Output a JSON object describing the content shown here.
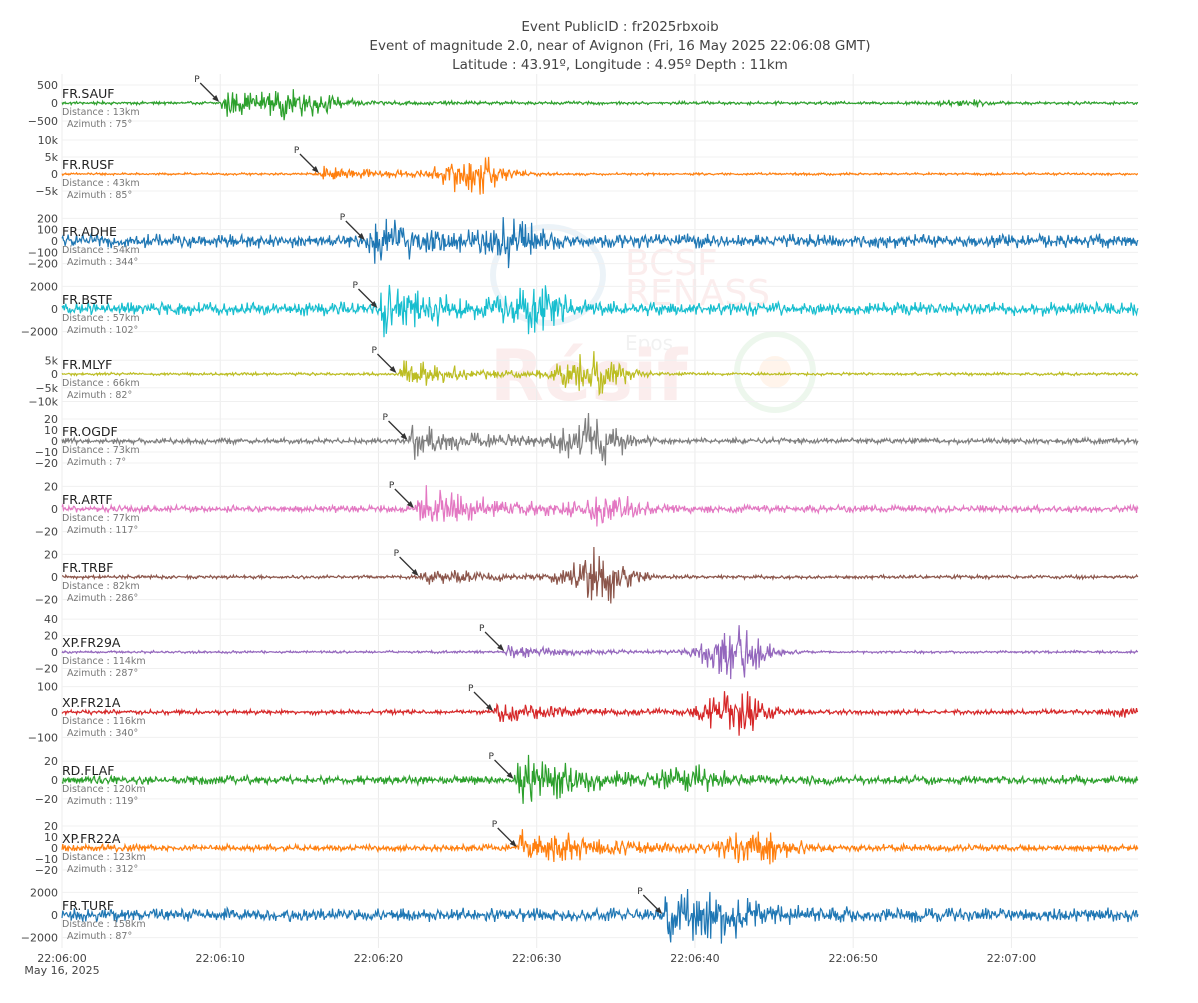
{
  "header": {
    "line1": "Event PublicID : fr2025rbxoib",
    "line2": "Event of magnitude 2.0, near of Avignon (Fri, 16 May 2025 22:06:08 GMT)",
    "line3": "Latitude : 43.91º, Longitude : 4.95º Depth : 11km"
  },
  "watermark": {
    "line1": "BCSF",
    "line2": "RENASS",
    "line3": "Epos",
    "line4": "Résif"
  },
  "chart_data": {
    "type": "line",
    "title": "Event PublicID : fr2025rbxoib",
    "x_axis": {
      "start": "22:06:00",
      "end": "22:07:08",
      "start_seconds": 0,
      "end_seconds": 68,
      "ticks": [
        {
          "value": 0,
          "label": "22:06:00"
        },
        {
          "value": 10,
          "label": "22:06:10"
        },
        {
          "value": 20,
          "label": "22:06:20"
        },
        {
          "value": 30,
          "label": "22:06:30"
        },
        {
          "value": 40,
          "label": "22:06:40"
        },
        {
          "value": 50,
          "label": "22:06:50"
        },
        {
          "value": 60,
          "label": "22:07:00"
        }
      ],
      "date_label": "May 16, 2025"
    },
    "grid": true,
    "series": [
      {
        "name": "FR.SAUF",
        "color": "#2ca02c",
        "distance": "Distance : 13km",
        "azimuth": "Azimuth : 75°",
        "p_arrival": 10,
        "secondary": 15,
        "noise": 0.05,
        "amp1": 0.45,
        "amp2": 0.35,
        "late": 57,
        "yticks": [
          {
            "v": 500,
            "t": "500"
          },
          {
            "v": 0,
            "t": "0"
          },
          {
            "v": -500,
            "t": "−500"
          }
        ],
        "ylim": [
          -1000,
          1000
        ]
      },
      {
        "name": "FR.RUSF",
        "color": "#ff7f0e",
        "distance": "Distance : 43km",
        "azimuth": "Azimuth : 85°",
        "p_arrival": 16.3,
        "secondary": 26,
        "noise": 0.04,
        "amp1": 0.3,
        "amp2": 0.65,
        "late": null,
        "yticks": [
          {
            "v": 10000,
            "t": "10k"
          },
          {
            "v": 5000,
            "t": "5k"
          },
          {
            "v": 0,
            "t": "0"
          },
          {
            "v": -5000,
            "t": "−5k"
          }
        ],
        "ylim": [
          -10000,
          10000
        ]
      },
      {
        "name": "FR.ADHE",
        "color": "#1f77b4",
        "distance": "Distance : 54km",
        "azimuth": "Azimuth : 344°",
        "p_arrival": 19.2,
        "secondary": 28.5,
        "noise": 0.22,
        "amp1": 0.75,
        "amp2": 0.6,
        "late": null,
        "yticks": [
          {
            "v": 200,
            "t": "200"
          },
          {
            "v": 100,
            "t": "100"
          },
          {
            "v": 0,
            "t": "0"
          },
          {
            "v": -100,
            "t": "−100"
          },
          {
            "v": -200,
            "t": "−200"
          }
        ],
        "ylim": [
          -300,
          300
        ]
      },
      {
        "name": "FR.BSTF",
        "color": "#17becf",
        "distance": "Distance : 57km",
        "azimuth": "Azimuth : 102°",
        "p_arrival": 20,
        "secondary": 30,
        "noise": 0.22,
        "amp1": 0.8,
        "amp2": 0.6,
        "late": null,
        "yticks": [
          {
            "v": 2000,
            "t": "2000"
          },
          {
            "v": 0,
            "t": "0"
          },
          {
            "v": -2000,
            "t": "−2000"
          }
        ],
        "ylim": [
          -3000,
          3000
        ]
      },
      {
        "name": "FR.MLYF",
        "color": "#bcbd22",
        "distance": "Distance : 66km",
        "azimuth": "Azimuth : 82°",
        "p_arrival": 21.2,
        "secondary": 33.5,
        "noise": 0.05,
        "amp1": 0.55,
        "amp2": 0.8,
        "late": null,
        "yticks": [
          {
            "v": 5000,
            "t": "5k"
          },
          {
            "v": 0,
            "t": "0"
          },
          {
            "v": -5000,
            "t": "−5k"
          },
          {
            "v": -10000,
            "t": "−10k"
          }
        ],
        "ylim": [
          -12000,
          12000
        ]
      },
      {
        "name": "FR.OGDF",
        "color": "#7f7f7f",
        "distance": "Distance : 73km",
        "azimuth": "Azimuth : 7°",
        "p_arrival": 21.9,
        "secondary": 33.5,
        "noise": 0.1,
        "amp1": 0.55,
        "amp2": 0.8,
        "late": null,
        "yticks": [
          {
            "v": 20,
            "t": "20"
          },
          {
            "v": 10,
            "t": "10"
          },
          {
            "v": 0,
            "t": "0"
          },
          {
            "v": -10,
            "t": "−10"
          },
          {
            "v": -20,
            "t": "−20"
          }
        ],
        "ylim": [
          -30,
          30
        ]
      },
      {
        "name": "FR.ARTF",
        "color": "#e377c2",
        "distance": "Distance : 77km",
        "azimuth": "Azimuth : 117°",
        "p_arrival": 22.3,
        "secondary": 34.5,
        "noise": 0.12,
        "amp1": 0.8,
        "amp2": 0.45,
        "late": null,
        "yticks": [
          {
            "v": 20,
            "t": "20"
          },
          {
            "v": 0,
            "t": "0"
          },
          {
            "v": -20,
            "t": "−20"
          }
        ],
        "ylim": [
          -30,
          30
        ]
      },
      {
        "name": "FR.TRBF",
        "color": "#8c564b",
        "distance": "Distance : 82km",
        "azimuth": "Azimuth : 286°",
        "p_arrival": 22.6,
        "secondary": 34,
        "noise": 0.06,
        "amp1": 0.3,
        "amp2": 0.85,
        "late": null,
        "yticks": [
          {
            "v": 20,
            "t": "20"
          },
          {
            "v": 0,
            "t": "0"
          },
          {
            "v": -20,
            "t": "−20"
          }
        ],
        "ylim": [
          -30,
          30
        ]
      },
      {
        "name": "XP.FR29A",
        "color": "#9467bd",
        "distance": "Distance : 114km",
        "azimuth": "Azimuth : 287°",
        "p_arrival": 28,
        "secondary": 42.5,
        "noise": 0.04,
        "amp1": 0.2,
        "amp2": 0.9,
        "late": null,
        "yticks": [
          {
            "v": 40,
            "t": "40"
          },
          {
            "v": 20,
            "t": "20"
          },
          {
            "v": 0,
            "t": "0"
          },
          {
            "v": -20,
            "t": "−20"
          }
        ],
        "ylim": [
          -45,
          45
        ]
      },
      {
        "name": "XP.FR21A",
        "color": "#d62728",
        "distance": "Distance : 116km",
        "azimuth": "Azimuth : 340°",
        "p_arrival": 27.3,
        "secondary": 42.5,
        "noise": 0.08,
        "amp1": 0.35,
        "amp2": 0.8,
        "late": 67,
        "yticks": [
          {
            "v": 100,
            "t": "100"
          },
          {
            "v": 0,
            "t": "0"
          },
          {
            "v": -100,
            "t": "−100"
          }
        ],
        "ylim": [
          -130,
          130
        ]
      },
      {
        "name": "RD.FLAF",
        "color": "#2ca02c",
        "distance": "Distance : 120km",
        "azimuth": "Azimuth : 119°",
        "p_arrival": 28.6,
        "secondary": 40,
        "noise": 0.15,
        "amp1": 0.9,
        "amp2": 0.3,
        "late": null,
        "yticks": [
          {
            "v": 20,
            "t": "20"
          },
          {
            "v": 0,
            "t": "0"
          },
          {
            "v": -20,
            "t": "−20"
          }
        ],
        "ylim": [
          -35,
          35
        ]
      },
      {
        "name": "XP.FR22A",
        "color": "#ff7f0e",
        "distance": "Distance : 123km",
        "azimuth": "Azimuth : 312°",
        "p_arrival": 28.8,
        "secondary": 44,
        "noise": 0.12,
        "amp1": 0.8,
        "amp2": 0.7,
        "late": null,
        "yticks": [
          {
            "v": 20,
            "t": "20"
          },
          {
            "v": 10,
            "t": "10"
          },
          {
            "v": 0,
            "t": "0"
          },
          {
            "v": -10,
            "t": "−10"
          },
          {
            "v": -20,
            "t": "−20"
          }
        ],
        "ylim": [
          -30,
          30
        ]
      },
      {
        "name": "FR.TURF",
        "color": "#1f77b4",
        "distance": "Distance : 158km",
        "azimuth": "Azimuth : 87°",
        "p_arrival": 38,
        "secondary": 42,
        "noise": 0.22,
        "amp1": 0.9,
        "amp2": 0.35,
        "late": null,
        "yticks": [
          {
            "v": 2000,
            "t": "2000"
          },
          {
            "v": 0,
            "t": "0"
          },
          {
            "v": -2000,
            "t": "−2000"
          }
        ],
        "ylim": [
          -3000,
          3000
        ]
      }
    ],
    "p_label": "P"
  }
}
